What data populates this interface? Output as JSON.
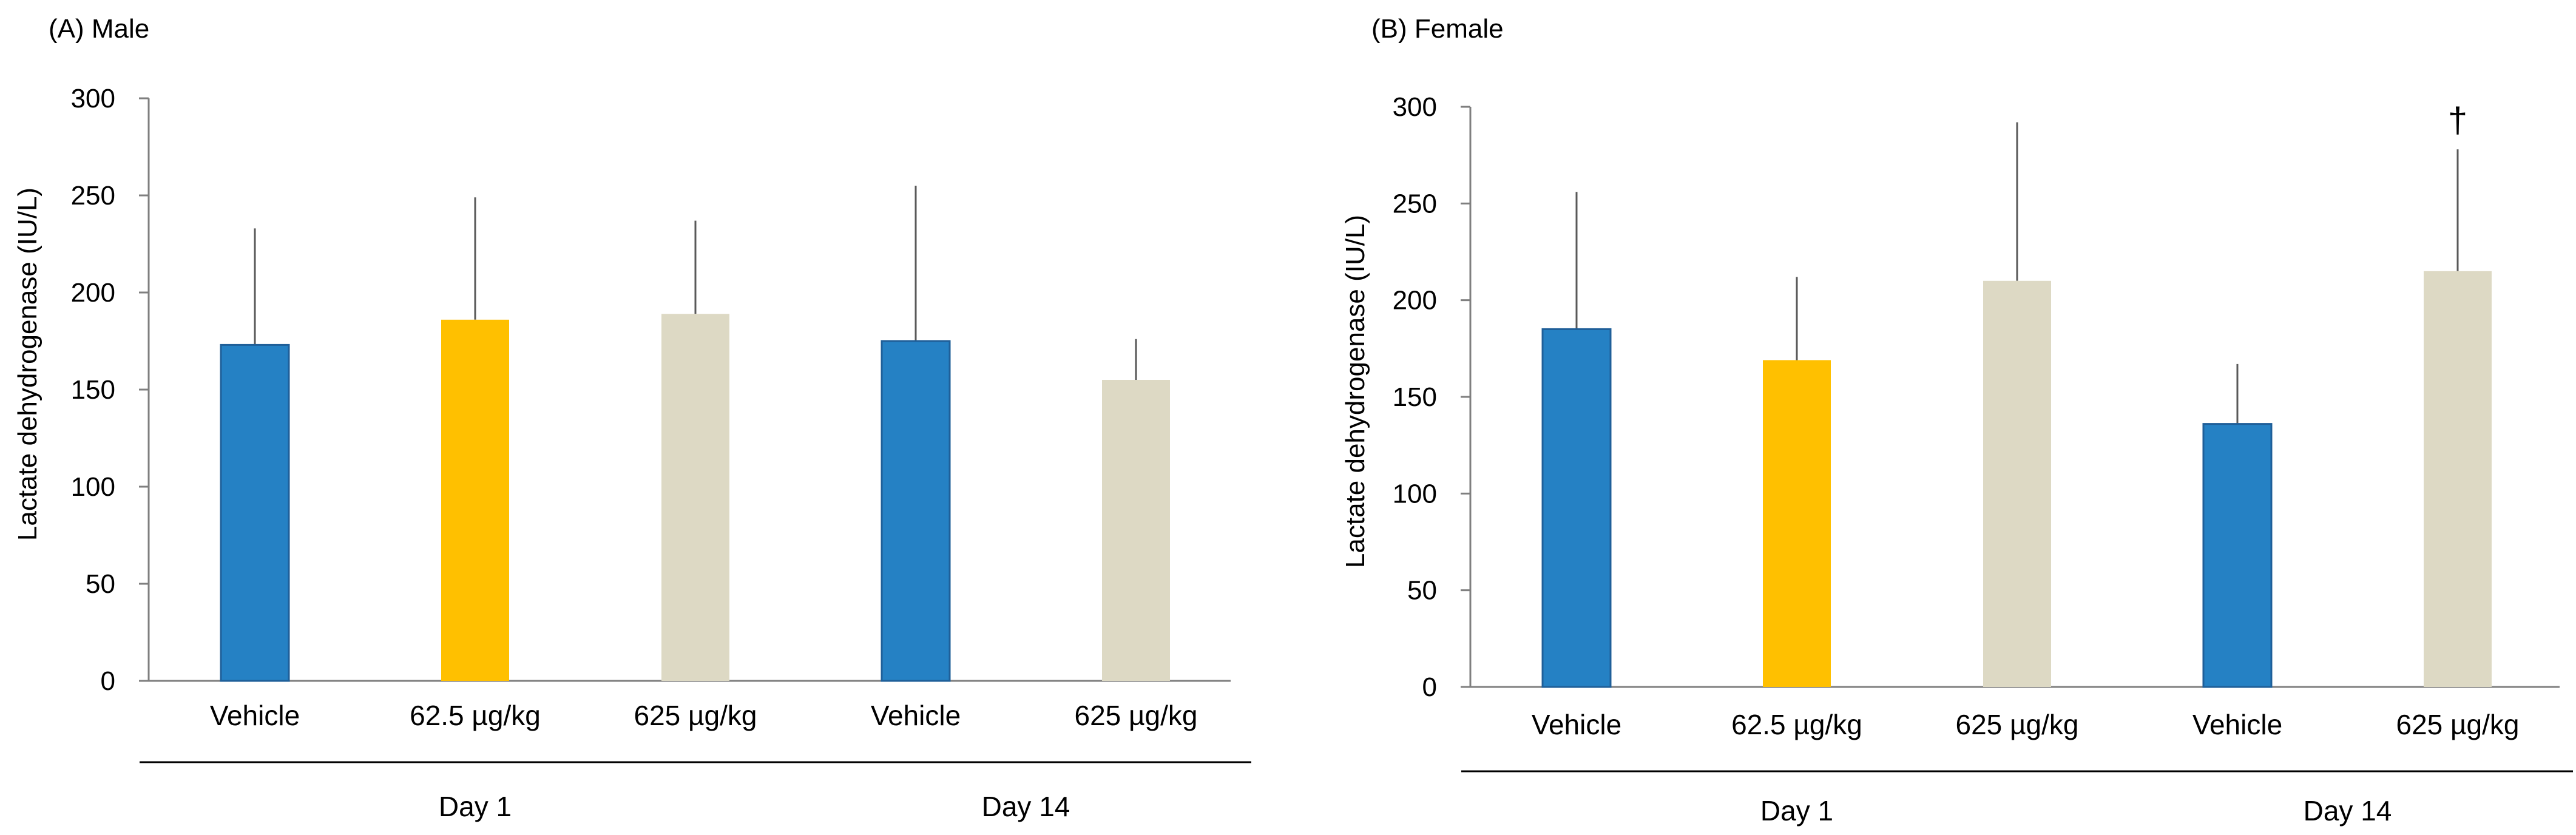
{
  "chart_data": [
    {
      "type": "bar",
      "title": "(A) Male",
      "ylabel": "Lactate dehydrogenase (IU/L)",
      "xlabel": "",
      "ylim": [
        0,
        300
      ],
      "yticks": [
        0,
        50,
        100,
        150,
        200,
        250,
        300
      ],
      "categories": [
        "Vehicle",
        "62.5 µg/kg",
        "625 µg/kg",
        "Vehicle",
        "625 µg/kg"
      ],
      "values": [
        173,
        186,
        189,
        175,
        155
      ],
      "error_upper": [
        60,
        63,
        48,
        80,
        21
      ],
      "colors": [
        "#2581C4",
        "#FFC000",
        "#DDD9C4",
        "#2581C4",
        "#DDD9C4"
      ],
      "groups": [
        {
          "label": "Day 1",
          "members": [
            0,
            1,
            2
          ]
        },
        {
          "label": "Day 14",
          "members": [
            3,
            4
          ]
        }
      ],
      "annotations": []
    },
    {
      "type": "bar",
      "title": "(B) Female",
      "ylabel": "Lactate dehydrogenase (IU/L)",
      "xlabel": "",
      "ylim": [
        0,
        300
      ],
      "yticks": [
        0,
        50,
        100,
        150,
        200,
        250,
        300
      ],
      "categories": [
        "Vehicle",
        "62.5 µg/kg",
        "625 µg/kg",
        "Vehicle",
        "625 µg/kg"
      ],
      "values": [
        185,
        169,
        210,
        136,
        215
      ],
      "error_upper": [
        71,
        43,
        82,
        31,
        63
      ],
      "colors": [
        "#2581C4",
        "#FFC000",
        "#DDD9C4",
        "#2581C4",
        "#DDD9C4"
      ],
      "groups": [
        {
          "label": "Day 1",
          "members": [
            0,
            1,
            2
          ]
        },
        {
          "label": "Day 14",
          "members": [
            3,
            4
          ]
        }
      ],
      "annotations": [
        {
          "bar": 4,
          "text": "†"
        }
      ]
    }
  ]
}
